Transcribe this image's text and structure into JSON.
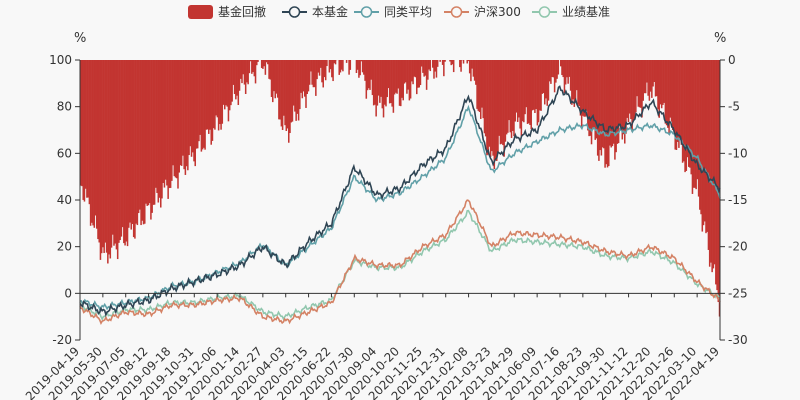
{
  "chart_data": {
    "type": "line",
    "legend": [
      {
        "name": "基金回撤",
        "color": "#c23531",
        "kind": "bar"
      },
      {
        "name": "本基金",
        "color": "#2f4554",
        "kind": "line"
      },
      {
        "name": "同类平均",
        "color": "#61a0a8",
        "kind": "line"
      },
      {
        "name": "沪深300",
        "color": "#d48265",
        "kind": "line"
      },
      {
        "name": "业绩基准",
        "color": "#91c7ae",
        "kind": "line"
      }
    ],
    "left_axis": {
      "unit": "%",
      "min": -20,
      "max": 100,
      "ticks": [
        "100",
        "80",
        "60",
        "40",
        "20",
        "0",
        "-20"
      ]
    },
    "right_axis": {
      "unit": "%",
      "min": -30,
      "max": 0,
      "ticks": [
        "0",
        "-5",
        "-10",
        "-15",
        "-20",
        "-25",
        "-30"
      ]
    },
    "x_labels": [
      "2019-04-19",
      "2019-05-30",
      "2019-07-05",
      "2019-08-12",
      "2019-09-18",
      "2019-10-31",
      "2019-12-06",
      "2020-01-14",
      "2020-02-27",
      "2020-04-03",
      "2020-05-15",
      "2020-06-22",
      "2020-07-30",
      "2020-09-04",
      "2020-10-20",
      "2020-11-25",
      "2020-12-31",
      "2021-02-08",
      "2021-03-23",
      "2021-04-29",
      "2021-06-09",
      "2021-07-16",
      "2021-08-23",
      "2021-09-30",
      "2021-11-12",
      "2021-12-20",
      "2022-01-26",
      "2022-03-10",
      "2022-04-19"
    ],
    "series": [
      {
        "name": "本基金",
        "axis": "left",
        "values": [
          -4,
          -8,
          -5,
          -3,
          2,
          5,
          8,
          12,
          20,
          12,
          22,
          30,
          54,
          42,
          45,
          55,
          62,
          85,
          56,
          66,
          70,
          88,
          78,
          70,
          72,
          82,
          70,
          55,
          45
        ]
      },
      {
        "name": "同类平均",
        "axis": "left",
        "values": [
          -3,
          -6,
          -4,
          -2,
          3,
          5,
          9,
          13,
          21,
          12,
          20,
          28,
          50,
          40,
          43,
          50,
          58,
          80,
          52,
          60,
          65,
          70,
          72,
          68,
          70,
          72,
          68,
          58,
          42
        ]
      },
      {
        "name": "沪深300",
        "axis": "left",
        "values": [
          -6,
          -12,
          -8,
          -9,
          -5,
          -5,
          -3,
          -2,
          -10,
          -12,
          -8,
          -4,
          15,
          12,
          12,
          20,
          25,
          40,
          20,
          26,
          25,
          24,
          22,
          18,
          16,
          20,
          15,
          5,
          -3
        ]
      },
      {
        "name": "业绩基准",
        "axis": "left",
        "values": [
          -5,
          -10,
          -7,
          -7,
          -4,
          -4,
          -2,
          -1,
          -8,
          -10,
          -6,
          -3,
          14,
          11,
          11,
          18,
          23,
          35,
          18,
          23,
          22,
          21,
          20,
          16,
          15,
          18,
          13,
          4,
          -2
        ]
      },
      {
        "name": "基金回撤",
        "axis": "right",
        "values": [
          -13,
          -21,
          -19,
          -16,
          -13,
          -10,
          -7,
          -3,
          0,
          -8,
          -3,
          -1,
          0,
          -5,
          -4,
          -2,
          0,
          0,
          -11,
          -7,
          -6,
          -1,
          -6,
          -11,
          -7,
          -3,
          -8,
          -14,
          -26
        ]
      }
    ]
  }
}
